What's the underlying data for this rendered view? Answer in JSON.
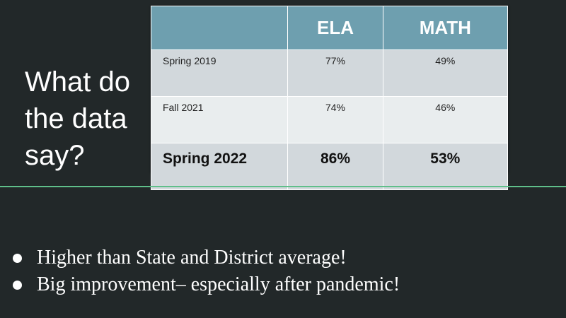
{
  "slide": {
    "title": "What do the data say?",
    "table": {
      "headers": [
        "",
        "ELA",
        "MATH"
      ],
      "rows": [
        {
          "label": "Spring 2019",
          "ela": "77%",
          "math": "49%"
        },
        {
          "label": "Fall 2021",
          "ela": "74%",
          "math": "46%"
        },
        {
          "label": "Spring 2022",
          "ela": "86%",
          "math": "53%"
        }
      ]
    },
    "bullets": [
      "Higher than State and District average!",
      "Big improvement– especially after pandemic!"
    ]
  },
  "colors": {
    "background": "#222829",
    "header_fill": "#6e9faf",
    "row_dark": "#d2d8dc",
    "row_light": "#e9edee",
    "divider": "#5fbf8a",
    "text": "#ffffff"
  }
}
